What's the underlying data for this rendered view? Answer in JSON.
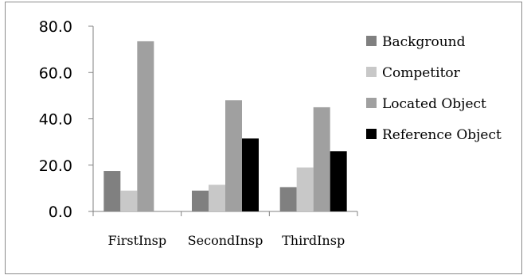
{
  "chart_data": {
    "type": "bar",
    "title": "",
    "xlabel": "",
    "ylabel": "",
    "categories": [
      "FirstInsp",
      "SecondInsp",
      "ThirdInsp"
    ],
    "ylim": [
      0,
      80
    ],
    "ytick_values": [
      0,
      20,
      40,
      60,
      80
    ],
    "ytick_labels": [
      "0.0",
      "20.0",
      "40.0",
      "60.0",
      "80.0"
    ],
    "grid": false,
    "legend_position": "right",
    "series": [
      {
        "name": "Background",
        "color": "#808080",
        "values": [
          17.5,
          9.0,
          10.5
        ]
      },
      {
        "name": "Competitor",
        "color": "#c8c8c8",
        "values": [
          9.0,
          11.5,
          19.0
        ]
      },
      {
        "name": "Located Object",
        "color": "#a0a0a0",
        "values": [
          73.5,
          48.0,
          45.0
        ]
      },
      {
        "name": "Reference Object",
        "color": "#000000",
        "values": [
          0,
          31.5,
          26.0
        ]
      }
    ]
  }
}
